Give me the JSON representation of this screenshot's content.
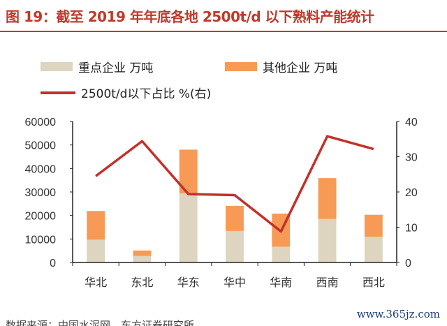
{
  "chart_data": {
    "type": "bar",
    "stacked": true,
    "title": "图 19：截至 2019 年年底各地 2500t/d 以下熟料产能统计",
    "categories": [
      "华北",
      "东北",
      "华东",
      "华中",
      "华南",
      "西南",
      "西北"
    ],
    "series": [
      {
        "name": "重点企业 万吨",
        "type": "bar",
        "axis": "left",
        "color": "#ddd5c0",
        "values": [
          9700,
          2800,
          29400,
          13400,
          6700,
          18500,
          10900
        ]
      },
      {
        "name": "其他企业 万吨",
        "type": "bar",
        "axis": "left",
        "color": "#f79a55",
        "values": [
          12200,
          2300,
          18600,
          10700,
          14100,
          17400,
          9400
        ]
      },
      {
        "name": "2500t/d以下占比 %(右)",
        "type": "line",
        "axis": "right",
        "color": "#c4302b",
        "values": [
          24.5,
          34.4,
          19.4,
          19.1,
          8.8,
          35.8,
          32.2
        ]
      }
    ],
    "ylim": [
      0,
      60000
    ],
    "yticks": [
      "0",
      "10000",
      "20000",
      "30000",
      "40000",
      "50000",
      "60000"
    ],
    "y2lim": [
      0,
      40
    ],
    "y2ticks": [
      "0",
      "10",
      "20",
      "30",
      "40"
    ],
    "legend": "top"
  },
  "source": "数据来源：中国水泥网，东方证券研究所",
  "watermark": "www.365jz.com"
}
